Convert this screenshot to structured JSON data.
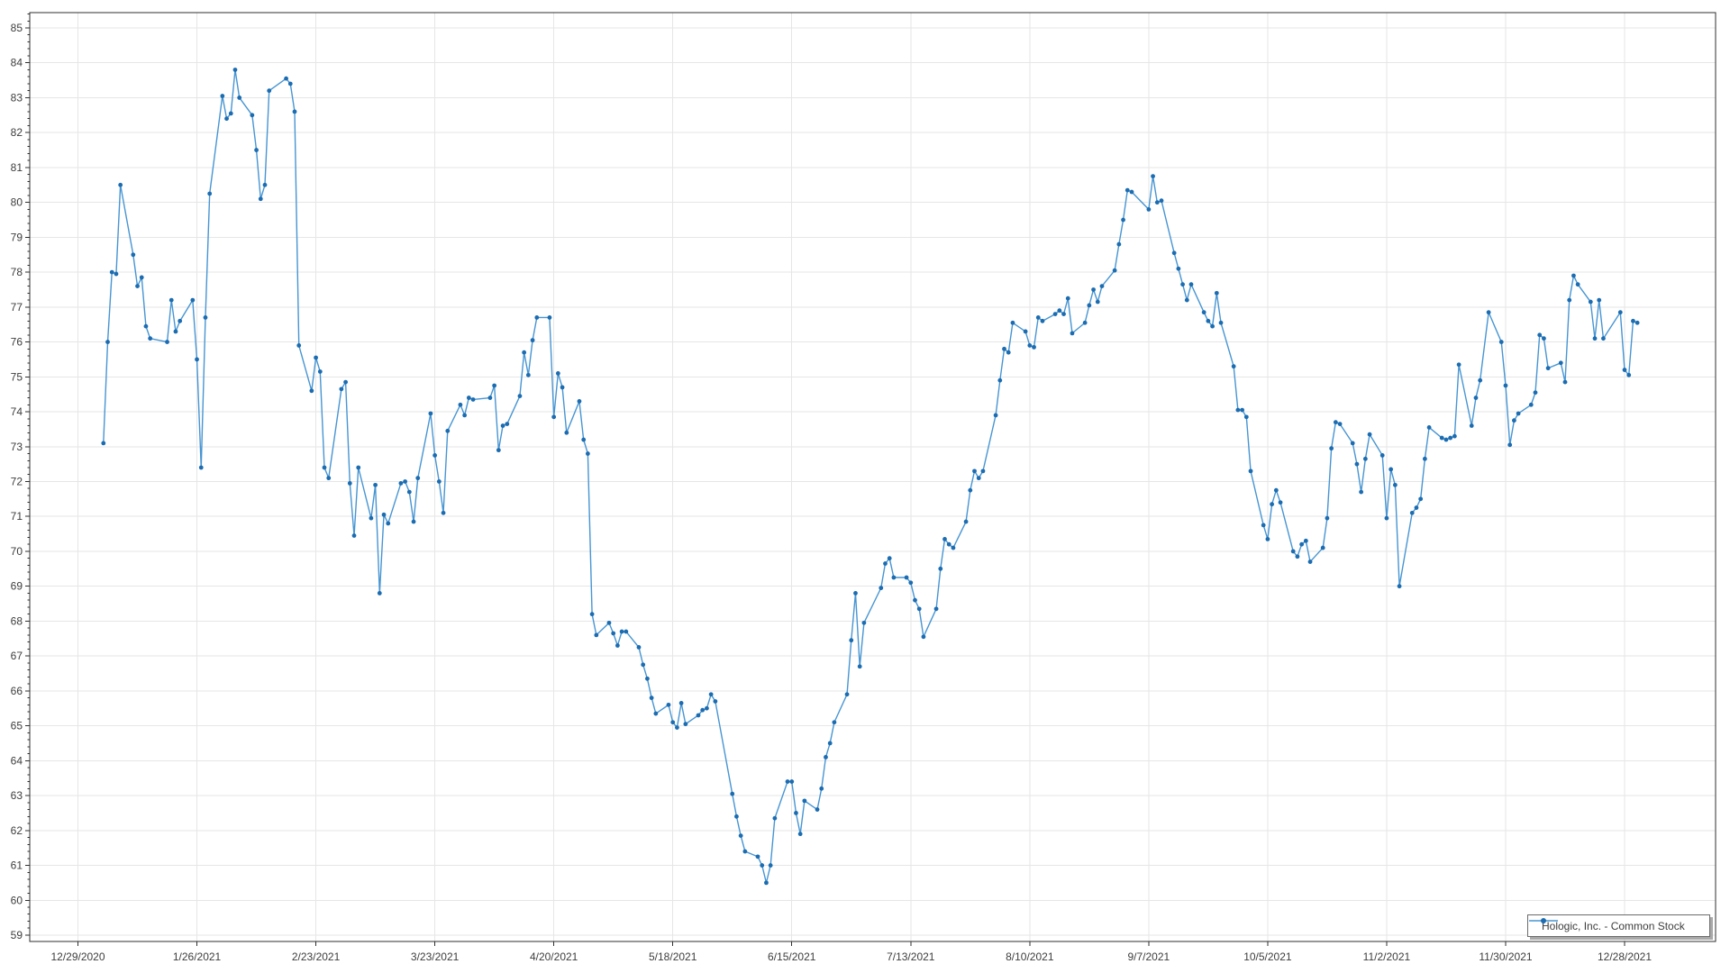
{
  "chart_data": {
    "type": "line",
    "title": "",
    "xlabel": "",
    "ylabel": "",
    "grid": true,
    "legend": {
      "label": "Hologic, Inc. - Common Stock",
      "position": "bottom-right"
    },
    "x_axis": {
      "kind": "date",
      "tick_labels": [
        "12/29/2020",
        "1/26/2021",
        "2/23/2021",
        "3/23/2021",
        "4/20/2021",
        "5/18/2021",
        "6/15/2021",
        "7/13/2021",
        "8/10/2021",
        "9/7/2021",
        "10/5/2021",
        "11/2/2021",
        "11/30/2021",
        "12/28/2021"
      ],
      "tick_interval_days": 28
    },
    "y_axis": {
      "min": 59,
      "max": 85,
      "tick_step": 1,
      "minor_tick_step": 0.2
    },
    "series": [
      {
        "name": "Hologic, Inc. - Common Stock",
        "line_color": "#4795d2",
        "marker_color": "#1b6cb1",
        "points": [
          [
            "1/4/2021",
            73.1
          ],
          [
            "1/5/2021",
            76.0
          ],
          [
            "1/6/2021",
            78.0
          ],
          [
            "1/7/2021",
            77.95
          ],
          [
            "1/8/2021",
            80.5
          ],
          [
            "1/11/2021",
            78.5
          ],
          [
            "1/12/2021",
            77.6
          ],
          [
            "1/13/2021",
            77.85
          ],
          [
            "1/14/2021",
            76.45
          ],
          [
            "1/15/2021",
            76.1
          ],
          [
            "1/19/2021",
            76.0
          ],
          [
            "1/20/2021",
            77.2
          ],
          [
            "1/21/2021",
            76.3
          ],
          [
            "1/22/2021",
            76.6
          ],
          [
            "1/25/2021",
            77.2
          ],
          [
            "1/26/2021",
            75.5
          ],
          [
            "1/27/2021",
            72.4
          ],
          [
            "1/28/2021",
            76.7
          ],
          [
            "1/29/2021",
            80.25
          ],
          [
            "2/1/2021",
            83.05
          ],
          [
            "2/2/2021",
            82.4
          ],
          [
            "2/3/2021",
            82.55
          ],
          [
            "2/4/2021",
            83.8
          ],
          [
            "2/5/2021",
            83.0
          ],
          [
            "2/8/2021",
            82.5
          ],
          [
            "2/9/2021",
            81.5
          ],
          [
            "2/10/2021",
            80.1
          ],
          [
            "2/11/2021",
            80.5
          ],
          [
            "2/12/2021",
            83.2
          ],
          [
            "2/16/2021",
            83.55
          ],
          [
            "2/17/2021",
            83.4
          ],
          [
            "2/18/2021",
            82.6
          ],
          [
            "2/19/2021",
            75.9
          ],
          [
            "2/22/2021",
            74.6
          ],
          [
            "2/23/2021",
            75.55
          ],
          [
            "2/24/2021",
            75.15
          ],
          [
            "2/25/2021",
            72.4
          ],
          [
            "2/26/2021",
            72.1
          ],
          [
            "3/1/2021",
            74.65
          ],
          [
            "3/2/2021",
            74.85
          ],
          [
            "3/3/2021",
            71.95
          ],
          [
            "3/4/2021",
            70.45
          ],
          [
            "3/5/2021",
            72.4
          ],
          [
            "3/8/2021",
            70.95
          ],
          [
            "3/9/2021",
            71.9
          ],
          [
            "3/10/2021",
            68.8
          ],
          [
            "3/11/2021",
            71.05
          ],
          [
            "3/12/2021",
            70.8
          ],
          [
            "3/15/2021",
            71.95
          ],
          [
            "3/16/2021",
            72.0
          ],
          [
            "3/17/2021",
            71.7
          ],
          [
            "3/18/2021",
            70.85
          ],
          [
            "3/19/2021",
            72.1
          ],
          [
            "3/22/2021",
            73.95
          ],
          [
            "3/23/2021",
            72.75
          ],
          [
            "3/24/2021",
            72.0
          ],
          [
            "3/25/2021",
            71.1
          ],
          [
            "3/26/2021",
            73.45
          ],
          [
            "3/29/2021",
            74.2
          ],
          [
            "3/30/2021",
            73.9
          ],
          [
            "3/31/2021",
            74.4
          ],
          [
            "4/1/2021",
            74.35
          ],
          [
            "4/5/2021",
            74.4
          ],
          [
            "4/6/2021",
            74.75
          ],
          [
            "4/7/2021",
            72.9
          ],
          [
            "4/8/2021",
            73.6
          ],
          [
            "4/9/2021",
            73.65
          ],
          [
            "4/12/2021",
            74.45
          ],
          [
            "4/13/2021",
            75.7
          ],
          [
            "4/14/2021",
            75.05
          ],
          [
            "4/15/2021",
            76.05
          ],
          [
            "4/16/2021",
            76.7
          ],
          [
            "4/19/2021",
            76.7
          ],
          [
            "4/20/2021",
            73.85
          ],
          [
            "4/21/2021",
            75.1
          ],
          [
            "4/22/2021",
            74.7
          ],
          [
            "4/23/2021",
            73.4
          ],
          [
            "4/26/2021",
            74.3
          ],
          [
            "4/27/2021",
            73.2
          ],
          [
            "4/28/2021",
            72.8
          ],
          [
            "4/29/2021",
            68.2
          ],
          [
            "4/30/2021",
            67.6
          ],
          [
            "5/3/2021",
            67.95
          ],
          [
            "5/4/2021",
            67.65
          ],
          [
            "5/5/2021",
            67.3
          ],
          [
            "5/6/2021",
            67.7
          ],
          [
            "5/7/2021",
            67.7
          ],
          [
            "5/10/2021",
            67.25
          ],
          [
            "5/11/2021",
            66.75
          ],
          [
            "5/12/2021",
            66.35
          ],
          [
            "5/13/2021",
            65.8
          ],
          [
            "5/14/2021",
            65.35
          ],
          [
            "5/17/2021",
            65.6
          ],
          [
            "5/18/2021",
            65.1
          ],
          [
            "5/19/2021",
            64.95
          ],
          [
            "5/20/2021",
            65.65
          ],
          [
            "5/21/2021",
            65.05
          ],
          [
            "5/24/2021",
            65.3
          ],
          [
            "5/25/2021",
            65.45
          ],
          [
            "5/26/2021",
            65.5
          ],
          [
            "5/27/2021",
            65.9
          ],
          [
            "5/28/2021",
            65.7
          ],
          [
            "6/1/2021",
            63.05
          ],
          [
            "6/2/2021",
            62.4
          ],
          [
            "6/3/2021",
            61.85
          ],
          [
            "6/4/2021",
            61.4
          ],
          [
            "6/7/2021",
            61.25
          ],
          [
            "6/8/2021",
            61.0
          ],
          [
            "6/9/2021",
            60.5
          ],
          [
            "6/10/2021",
            61.0
          ],
          [
            "6/11/2021",
            62.35
          ],
          [
            "6/14/2021",
            63.4
          ],
          [
            "6/15/2021",
            63.4
          ],
          [
            "6/16/2021",
            62.5
          ],
          [
            "6/17/2021",
            61.9
          ],
          [
            "6/18/2021",
            62.85
          ],
          [
            "6/21/2021",
            62.6
          ],
          [
            "6/22/2021",
            63.2
          ],
          [
            "6/23/2021",
            64.1
          ],
          [
            "6/24/2021",
            64.5
          ],
          [
            "6/25/2021",
            65.1
          ],
          [
            "6/28/2021",
            65.9
          ],
          [
            "6/29/2021",
            67.45
          ],
          [
            "6/30/2021",
            68.8
          ],
          [
            "7/1/2021",
            66.7
          ],
          [
            "7/2/2021",
            67.95
          ],
          [
            "7/6/2021",
            68.95
          ],
          [
            "7/7/2021",
            69.65
          ],
          [
            "7/8/2021",
            69.8
          ],
          [
            "7/9/2021",
            69.25
          ],
          [
            "7/12/2021",
            69.25
          ],
          [
            "7/13/2021",
            69.1
          ],
          [
            "7/14/2021",
            68.6
          ],
          [
            "7/15/2021",
            68.35
          ],
          [
            "7/16/2021",
            67.55
          ],
          [
            "7/19/2021",
            68.35
          ],
          [
            "7/20/2021",
            69.5
          ],
          [
            "7/21/2021",
            70.35
          ],
          [
            "7/22/2021",
            70.2
          ],
          [
            "7/23/2021",
            70.1
          ],
          [
            "7/26/2021",
            70.85
          ],
          [
            "7/27/2021",
            71.75
          ],
          [
            "7/28/2021",
            72.3
          ],
          [
            "7/29/2021",
            72.1
          ],
          [
            "7/30/2021",
            72.3
          ],
          [
            "8/2/2021",
            73.9
          ],
          [
            "8/3/2021",
            74.9
          ],
          [
            "8/4/2021",
            75.8
          ],
          [
            "8/5/2021",
            75.7
          ],
          [
            "8/6/2021",
            76.55
          ],
          [
            "8/9/2021",
            76.3
          ],
          [
            "8/10/2021",
            75.9
          ],
          [
            "8/11/2021",
            75.85
          ],
          [
            "8/12/2021",
            76.7
          ],
          [
            "8/13/2021",
            76.6
          ],
          [
            "8/16/2021",
            76.8
          ],
          [
            "8/17/2021",
            76.9
          ],
          [
            "8/18/2021",
            76.8
          ],
          [
            "8/19/2021",
            77.25
          ],
          [
            "8/20/2021",
            76.25
          ],
          [
            "8/23/2021",
            76.55
          ],
          [
            "8/24/2021",
            77.05
          ],
          [
            "8/25/2021",
            77.5
          ],
          [
            "8/26/2021",
            77.15
          ],
          [
            "8/27/2021",
            77.6
          ],
          [
            "8/30/2021",
            78.05
          ],
          [
            "8/31/2021",
            78.8
          ],
          [
            "9/1/2021",
            79.5
          ],
          [
            "9/2/2021",
            80.35
          ],
          [
            "9/3/2021",
            80.3
          ],
          [
            "9/7/2021",
            79.8
          ],
          [
            "9/8/2021",
            80.75
          ],
          [
            "9/9/2021",
            80.0
          ],
          [
            "9/10/2021",
            80.05
          ],
          [
            "9/13/2021",
            78.55
          ],
          [
            "9/14/2021",
            78.1
          ],
          [
            "9/15/2021",
            77.65
          ],
          [
            "9/16/2021",
            77.2
          ],
          [
            "9/17/2021",
            77.65
          ],
          [
            "9/20/2021",
            76.85
          ],
          [
            "9/21/2021",
            76.6
          ],
          [
            "9/22/2021",
            76.45
          ],
          [
            "9/23/2021",
            77.4
          ],
          [
            "9/24/2021",
            76.55
          ],
          [
            "9/27/2021",
            75.3
          ],
          [
            "9/28/2021",
            74.05
          ],
          [
            "9/29/2021",
            74.05
          ],
          [
            "9/30/2021",
            73.85
          ],
          [
            "10/1/2021",
            72.3
          ],
          [
            "10/4/2021",
            70.75
          ],
          [
            "10/5/2021",
            70.35
          ],
          [
            "10/6/2021",
            71.35
          ],
          [
            "10/7/2021",
            71.75
          ],
          [
            "10/8/2021",
            71.4
          ],
          [
            "10/11/2021",
            70.0
          ],
          [
            "10/12/2021",
            69.85
          ],
          [
            "10/13/2021",
            70.2
          ],
          [
            "10/14/2021",
            70.3
          ],
          [
            "10/15/2021",
            69.7
          ],
          [
            "10/18/2021",
            70.1
          ],
          [
            "10/19/2021",
            70.95
          ],
          [
            "10/20/2021",
            72.95
          ],
          [
            "10/21/2021",
            73.7
          ],
          [
            "10/22/2021",
            73.65
          ],
          [
            "10/25/2021",
            73.1
          ],
          [
            "10/26/2021",
            72.5
          ],
          [
            "10/27/2021",
            71.7
          ],
          [
            "10/28/2021",
            72.65
          ],
          [
            "10/29/2021",
            73.35
          ],
          [
            "11/1/2021",
            72.75
          ],
          [
            "11/2/2021",
            70.95
          ],
          [
            "11/3/2021",
            72.35
          ],
          [
            "11/4/2021",
            71.9
          ],
          [
            "11/5/2021",
            69.0
          ],
          [
            "11/8/2021",
            71.1
          ],
          [
            "11/9/2021",
            71.25
          ],
          [
            "11/10/2021",
            71.5
          ],
          [
            "11/11/2021",
            72.65
          ],
          [
            "11/12/2021",
            73.55
          ],
          [
            "11/15/2021",
            73.25
          ],
          [
            "11/16/2021",
            73.2
          ],
          [
            "11/17/2021",
            73.25
          ],
          [
            "11/18/2021",
            73.3
          ],
          [
            "11/19/2021",
            75.35
          ],
          [
            "11/22/2021",
            73.6
          ],
          [
            "11/23/2021",
            74.4
          ],
          [
            "11/24/2021",
            74.9
          ],
          [
            "11/26/2021",
            76.85
          ],
          [
            "11/29/2021",
            76.0
          ],
          [
            "11/30/2021",
            74.75
          ],
          [
            "12/1/2021",
            73.05
          ],
          [
            "12/2/2021",
            73.75
          ],
          [
            "12/3/2021",
            73.95
          ],
          [
            "12/6/2021",
            74.2
          ],
          [
            "12/7/2021",
            74.55
          ],
          [
            "12/8/2021",
            76.2
          ],
          [
            "12/9/2021",
            76.1
          ],
          [
            "12/10/2021",
            75.25
          ],
          [
            "12/13/2021",
            75.4
          ],
          [
            "12/14/2021",
            74.85
          ],
          [
            "12/15/2021",
            77.2
          ],
          [
            "12/16/2021",
            77.9
          ],
          [
            "12/17/2021",
            77.65
          ],
          [
            "12/20/2021",
            77.15
          ],
          [
            "12/21/2021",
            76.1
          ],
          [
            "12/22/2021",
            77.2
          ],
          [
            "12/23/2021",
            76.1
          ],
          [
            "12/27/2021",
            76.85
          ],
          [
            "12/28/2021",
            75.2
          ],
          [
            "12/29/2021",
            75.05
          ],
          [
            "12/30/2021",
            76.6
          ],
          [
            "12/31/2021",
            76.55
          ]
        ]
      }
    ]
  },
  "colors": {
    "background": "#ffffff",
    "plot_border": "#2f2f2f",
    "gridline": "#e6e6e6",
    "tick": "#2f2f2f",
    "axis_text": "#3d3d3d",
    "legend_border": "#6b6b6b",
    "legend_shadow": "#a9a9a9",
    "series_line": "#4795d2",
    "series_marker": "#1b6cb1"
  }
}
